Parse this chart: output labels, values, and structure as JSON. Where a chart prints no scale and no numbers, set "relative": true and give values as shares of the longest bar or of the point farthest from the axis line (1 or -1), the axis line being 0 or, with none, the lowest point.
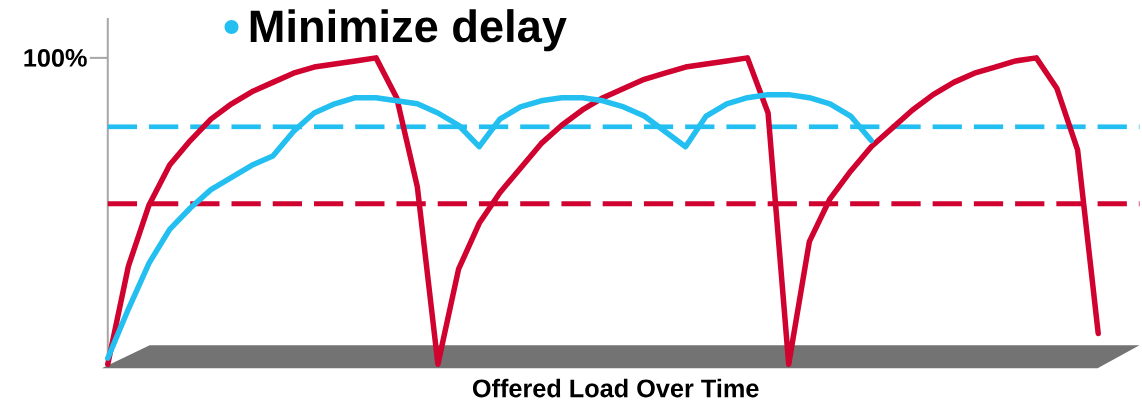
{
  "chart_data": {
    "type": "line",
    "relative": true,
    "title": "Minimize delay",
    "xlabel": "Offered Load Over Time",
    "line_style": "solid",
    "marker": "none",
    "categories": [
      null,
      null,
      null,
      null,
      null,
      null,
      null,
      null,
      null,
      null,
      null,
      null,
      null,
      null,
      null,
      null,
      null,
      null,
      null,
      null,
      null,
      null,
      null,
      null,
      null,
      null,
      null,
      null,
      null,
      null,
      null,
      null,
      null,
      null,
      null,
      null,
      null,
      null,
      null,
      null,
      null,
      null,
      null,
      null,
      null,
      null,
      null,
      null,
      null,
      null,
      null
    ],
    "series": [
      {
        "color": "#d0022f",
        "values": [
          0.0,
          0.32,
          0.52,
          0.65,
          0.73,
          0.8,
          0.85,
          0.89,
          0.92,
          0.95,
          0.97,
          0.98,
          0.99,
          1.0,
          0.87,
          0.58,
          0,
          0.31,
          0.46,
          0.56,
          0.64,
          0.72,
          0.78,
          0.83,
          0.87,
          0.9,
          0.93,
          0.95,
          0.97,
          0.98,
          0.99,
          1.0,
          0.82,
          0,
          0.4,
          0.54,
          0.63,
          0.71,
          0.77,
          0.83,
          0.88,
          0.92,
          0.95,
          0.97,
          0.99,
          1.0,
          0.9,
          0.7,
          0.1,
          null,
          null
        ]
      },
      {
        "color": "#22bff0",
        "values": [
          0.02,
          0.18,
          0.33,
          0.44,
          0.51,
          0.57,
          0.61,
          0.65,
          0.68,
          0.76,
          0.82,
          0.85,
          0.87,
          0.87,
          0.86,
          0.85,
          0.82,
          0.78,
          0.71,
          0.8,
          0.84,
          0.86,
          0.87,
          0.87,
          0.86,
          0.84,
          0.81,
          0.76,
          0.71,
          0.81,
          0.85,
          0.87,
          0.88,
          0.88,
          0.87,
          0.85,
          0.81,
          0.73,
          null,
          null,
          null,
          null,
          null,
          null,
          null,
          null,
          null,
          null,
          null,
          null,
          null
        ]
      }
    ],
    "ref_lines": [
      {
        "axis": "y",
        "value": 1,
        "label": "100%"
      },
      {
        "axis": "y",
        "value": 0.775,
        "color": "#22bff0",
        "line_style": "dashed"
      },
      {
        "axis": "y",
        "value": 0.524,
        "color": "#d0022f",
        "line_style": "dashed"
      }
    ]
  }
}
